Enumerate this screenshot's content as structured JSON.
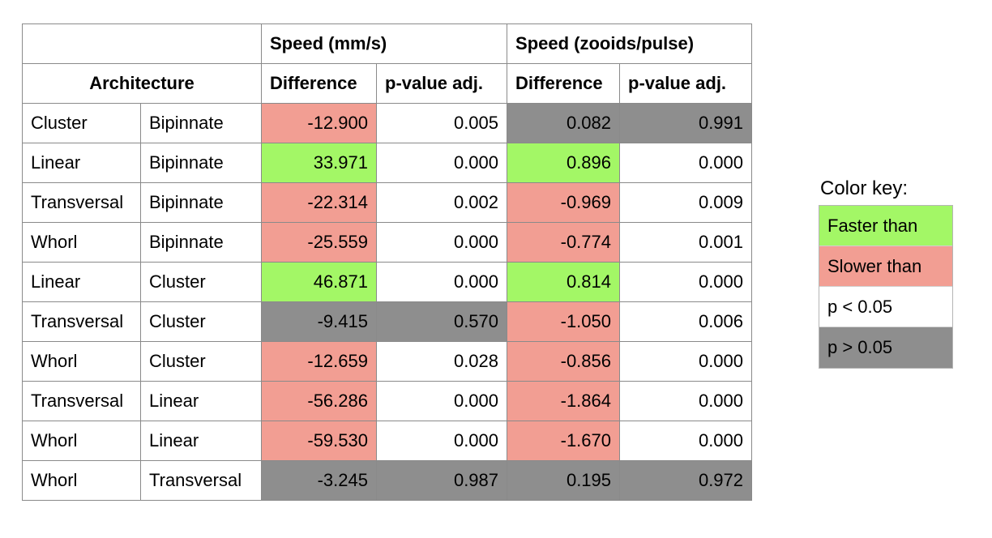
{
  "table": {
    "group_headers": [
      "Speed (mm/s)",
      "Speed (zooids/pulse)"
    ],
    "sub_headers": {
      "architecture": "Architecture",
      "diff1": "Difference",
      "pval1": "p-value adj.",
      "diff2": "Difference",
      "pval2": "p-value adj."
    },
    "rows": [
      {
        "a": "Cluster",
        "b": "Bipinnate",
        "d1": "-12.900",
        "p1": "0.005",
        "d2": "0.082",
        "p2": "0.991",
        "c_d1": "red",
        "c_p1": "white",
        "c_d2": "gray",
        "c_p2": "gray"
      },
      {
        "a": "Linear",
        "b": "Bipinnate",
        "d1": "33.971",
        "p1": "0.000",
        "d2": "0.896",
        "p2": "0.000",
        "c_d1": "green",
        "c_p1": "white",
        "c_d2": "green",
        "c_p2": "white"
      },
      {
        "a": "Transversal",
        "b": "Bipinnate",
        "d1": "-22.314",
        "p1": "0.002",
        "d2": "-0.969",
        "p2": "0.009",
        "c_d1": "red",
        "c_p1": "white",
        "c_d2": "red",
        "c_p2": "white"
      },
      {
        "a": "Whorl",
        "b": "Bipinnate",
        "d1": "-25.559",
        "p1": "0.000",
        "d2": "-0.774",
        "p2": "0.001",
        "c_d1": "red",
        "c_p1": "white",
        "c_d2": "red",
        "c_p2": "white"
      },
      {
        "a": "Linear",
        "b": "Cluster",
        "d1": "46.871",
        "p1": "0.000",
        "d2": "0.814",
        "p2": "0.000",
        "c_d1": "green",
        "c_p1": "white",
        "c_d2": "green",
        "c_p2": "white"
      },
      {
        "a": "Transversal",
        "b": "Cluster",
        "d1": "-9.415",
        "p1": "0.570",
        "d2": "-1.050",
        "p2": "0.006",
        "c_d1": "gray",
        "c_p1": "gray",
        "c_d2": "red",
        "c_p2": "white"
      },
      {
        "a": "Whorl",
        "b": "Cluster",
        "d1": "-12.659",
        "p1": "0.028",
        "d2": "-0.856",
        "p2": "0.000",
        "c_d1": "red",
        "c_p1": "white",
        "c_d2": "red",
        "c_p2": "white"
      },
      {
        "a": "Transversal",
        "b": "Linear",
        "d1": "-56.286",
        "p1": "0.000",
        "d2": "-1.864",
        "p2": "0.000",
        "c_d1": "red",
        "c_p1": "white",
        "c_d2": "red",
        "c_p2": "white"
      },
      {
        "a": "Whorl",
        "b": "Linear",
        "d1": "-59.530",
        "p1": "0.000",
        "d2": "-1.670",
        "p2": "0.000",
        "c_d1": "red",
        "c_p1": "white",
        "c_d2": "red",
        "c_p2": "white"
      },
      {
        "a": "Whorl",
        "b": "Transversal",
        "d1": "-3.245",
        "p1": "0.987",
        "d2": "0.195",
        "p2": "0.972",
        "c_d1": "gray",
        "c_p1": "gray",
        "c_d2": "gray",
        "c_p2": "gray"
      }
    ]
  },
  "color_key": {
    "title": "Color key:",
    "items": [
      {
        "label": "Faster than",
        "color": "green"
      },
      {
        "label": "Slower than",
        "color": "red"
      },
      {
        "label": "p < 0.05",
        "color": "white"
      },
      {
        "label": "p > 0.05",
        "color": "gray"
      }
    ]
  },
  "colors": {
    "green": "#a3f766",
    "red": "#f29e93",
    "gray": "#8e8e8e",
    "white": "#ffffff"
  }
}
